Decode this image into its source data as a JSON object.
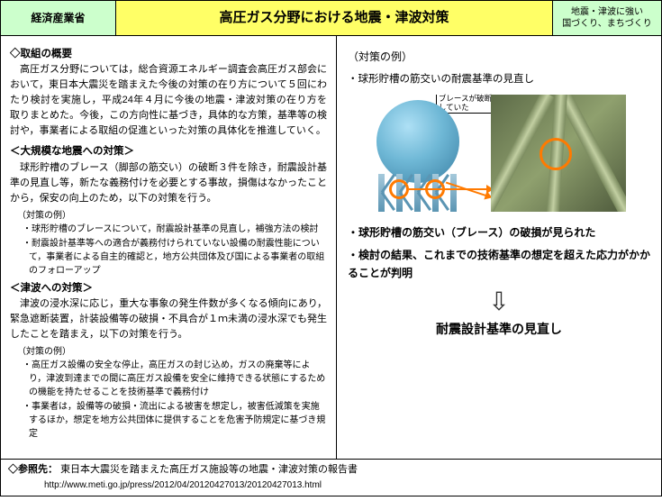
{
  "header": {
    "left": "経済産業省",
    "center": "高圧ガス分野における地震・津波対策",
    "right": "地震・津波に強い\n国づくり、まちづくり"
  },
  "left": {
    "overview_h": "◇取組の概要",
    "overview_p": "高圧ガス分野については，総合資源エネルギー調査会高圧ガス部会において，東日本大震災を踏まえた今後の対策の在り方について５回にわたり検討を実施し，平成24年４月に今後の地震・津波対策の在り方を取りまとめた。今後，この方向性に基づき，具体的な方策，基準等の検討や，事業者による取組の促進といった対策の具体化を推進していく。",
    "quake_h": "＜大規模な地震への対策＞",
    "quake_p": "球形貯槽のブレース（脚部の筋交い）の破断３件を除き，耐震設計基準の見直し等，新たな義務付けを必要とする事故，損傷はなかったことから，保安の向上のため，以下の対策を行う。",
    "ex_label": "（対策の例）",
    "quake_items": [
      "球形貯槽のブレースについて，耐震設計基準の見直し，補強方法の検討",
      "耐震設計基準等への適合が義務付けられていない設備の耐震性能について，事業者による自主的確認と，地方公共団体及び国による事業者の取組のフォローアップ"
    ],
    "tsu_h": "＜津波への対策＞",
    "tsu_p": "津波の浸水深に応じ，重大な事象の発生件数が多くなる傾向にあり，緊急遮断装置，計装設備等の破損・不具合が１ｍ未満の浸水深でも発生したことを踏まえ，以下の対策を行う。",
    "tsu_items": [
      "高圧ガス設備の安全な停止，高圧ガスの封じ込め，ガスの廃棄等により，津波到達までの間に高圧ガス設備を安全に維持できる状態にするための機能を持たせることを技術基準で義務付け",
      "事業者は，設備等の破損・流出による被害を想定し，被害低減策を実施するほか，想定を地方公共団体に提供することを危害予防規定に基づき規定"
    ]
  },
  "right": {
    "head": "（対策の例）",
    "item": "・球形貯槽の筋交いの耐震基準の見直し",
    "callout": "ブレースが破断\nしていた",
    "result1": "・球形貯槽の筋交い（ブレース）の破損が見られた",
    "result2": "・検討の結果、これまでの技術基準の想定を超えた応力がかかることが判明",
    "conclusion": "耐震設計基準の見直し"
  },
  "footer": {
    "label": "◇参照先：",
    "title": "東日本大震災を踏まえた高圧ガス施設等の地震・津波対策の報告書",
    "url": "http://www.meti.go.jp/press/2012/04/20120427013/20120427013.html"
  },
  "style": {
    "colors": {
      "header_green": "#ccffcc",
      "header_yellow": "#ffff66",
      "marker": "#ff7a00",
      "dome_grad": [
        "#aee0f5",
        "#6fb8d6",
        "#3a7fa3"
      ],
      "pipe_grad": [
        "#7a8a5e",
        "#c2cfa2",
        "#7a8a5e"
      ]
    }
  }
}
